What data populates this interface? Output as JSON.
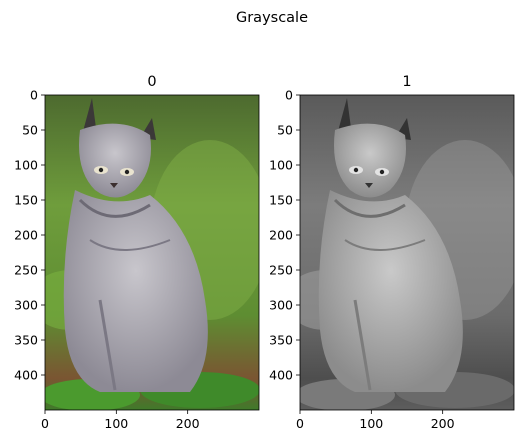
{
  "chart_data": {
    "type": "image",
    "suptitle": "Grayscale",
    "panels": [
      {
        "title": "0",
        "color_mode": "color",
        "content": "lynx",
        "xlim": [
          0,
          300
        ],
        "ylim": [
          450,
          0
        ],
        "xticks": [
          0,
          100,
          200
        ],
        "xtick_labels": [
          "0",
          "100",
          "200"
        ],
        "yticks": [
          0,
          50,
          100,
          150,
          200,
          250,
          300,
          350,
          400
        ],
        "ytick_labels": [
          "0",
          "50",
          "100",
          "150",
          "200",
          "250",
          "300",
          "350",
          "400"
        ]
      },
      {
        "title": "1",
        "color_mode": "grayscale",
        "content": "lynx",
        "xlim": [
          0,
          300
        ],
        "ylim": [
          450,
          0
        ],
        "xticks": [
          0,
          100,
          200
        ],
        "xtick_labels": [
          "0",
          "100",
          "200"
        ],
        "yticks": [
          0,
          50,
          100,
          150,
          200,
          250,
          300,
          350,
          400
        ],
        "ytick_labels": [
          "0",
          "50",
          "100",
          "150",
          "200",
          "250",
          "300",
          "350",
          "400"
        ]
      }
    ]
  }
}
